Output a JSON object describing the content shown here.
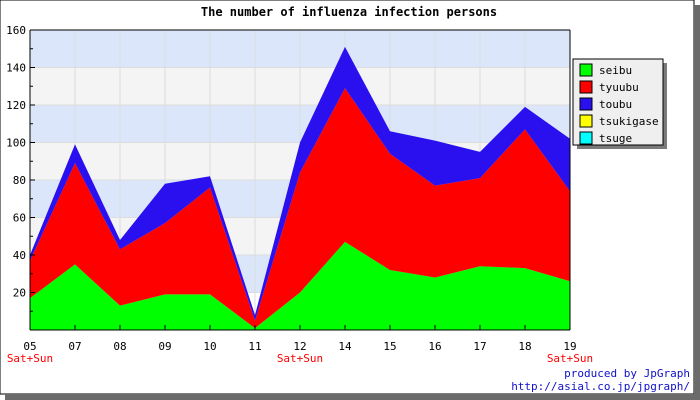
{
  "chart_data": {
    "type": "area",
    "stacked": true,
    "title": "The number of influenza infection persons",
    "categories": [
      "05",
      "07",
      "08",
      "09",
      "10",
      "11",
      "12",
      "14",
      "15",
      "16",
      "17",
      "18",
      "19"
    ],
    "day_markers": [
      "Sat+Sun",
      "",
      "",
      "",
      "",
      "",
      "Sat+Sun",
      "",
      "",
      "",
      "",
      "",
      "Sat+Sun"
    ],
    "ylim": [
      0,
      160
    ],
    "yticks": [
      20,
      40,
      60,
      80,
      100,
      120,
      140,
      160
    ],
    "legend_position": "right",
    "grid": true,
    "series": [
      {
        "name": "seibu",
        "color": "#00ff00",
        "values": [
          17,
          35,
          13,
          19,
          19,
          1,
          20,
          47,
          32,
          28,
          34,
          33,
          26
        ]
      },
      {
        "name": "tyuubu",
        "color": "#ff0000",
        "values": [
          20,
          54,
          30,
          38,
          57,
          4,
          64,
          82,
          62,
          49,
          47,
          74,
          48
        ]
      },
      {
        "name": "toubu",
        "color": "#2a10ee",
        "values": [
          3,
          10,
          5,
          21,
          6,
          3,
          16,
          22,
          12,
          24,
          14,
          12,
          28
        ]
      },
      {
        "name": "tsukigase",
        "color": "#ffff00",
        "values": [
          0,
          0,
          0,
          0,
          0,
          0,
          0,
          0,
          0,
          0,
          0,
          0,
          0
        ]
      },
      {
        "name": "tsuge",
        "color": "#00ffff",
        "values": [
          0,
          0,
          0,
          0,
          0,
          0,
          0,
          0,
          0,
          0,
          0,
          0,
          0
        ]
      }
    ]
  },
  "credits": {
    "line1": "produced by JpGraph",
    "line2": "http://asial.co.jp/jpgraph/"
  }
}
